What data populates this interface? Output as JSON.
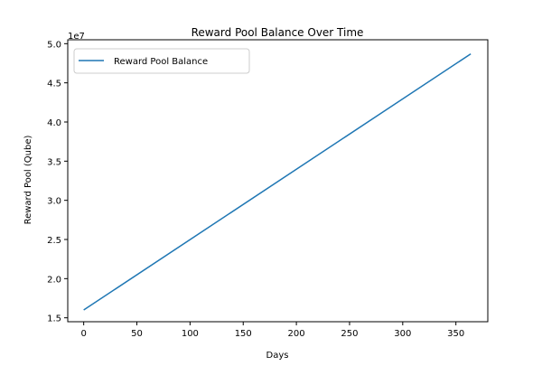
{
  "chart_data": {
    "type": "line",
    "title": "Reward Pool Balance Over Time",
    "xlabel": "Days",
    "ylabel": "Reward Pool (Qube)",
    "y_offset_label": "1e7",
    "y_scale_factor": 10000000,
    "xlim": [
      -15,
      380
    ],
    "ylim": [
      14500000,
      50500000
    ],
    "x_ticks": [
      0,
      50,
      100,
      150,
      200,
      250,
      300,
      350
    ],
    "x_tick_labels": [
      "0",
      "50",
      "100",
      "150",
      "200",
      "250",
      "300",
      "350"
    ],
    "y_ticks": [
      15000000,
      20000000,
      25000000,
      30000000,
      35000000,
      40000000,
      45000000,
      50000000
    ],
    "y_tick_labels": [
      "1.5",
      "2.0",
      "2.5",
      "3.0",
      "3.5",
      "4.0",
      "4.5",
      "5.0"
    ],
    "grid": false,
    "legend_placement": "top-left",
    "series": [
      {
        "name": "Reward Pool Balance",
        "color": "#1f77b4",
        "x": [
          0,
          364
        ],
        "y": [
          16000000,
          48700000
        ]
      }
    ]
  }
}
